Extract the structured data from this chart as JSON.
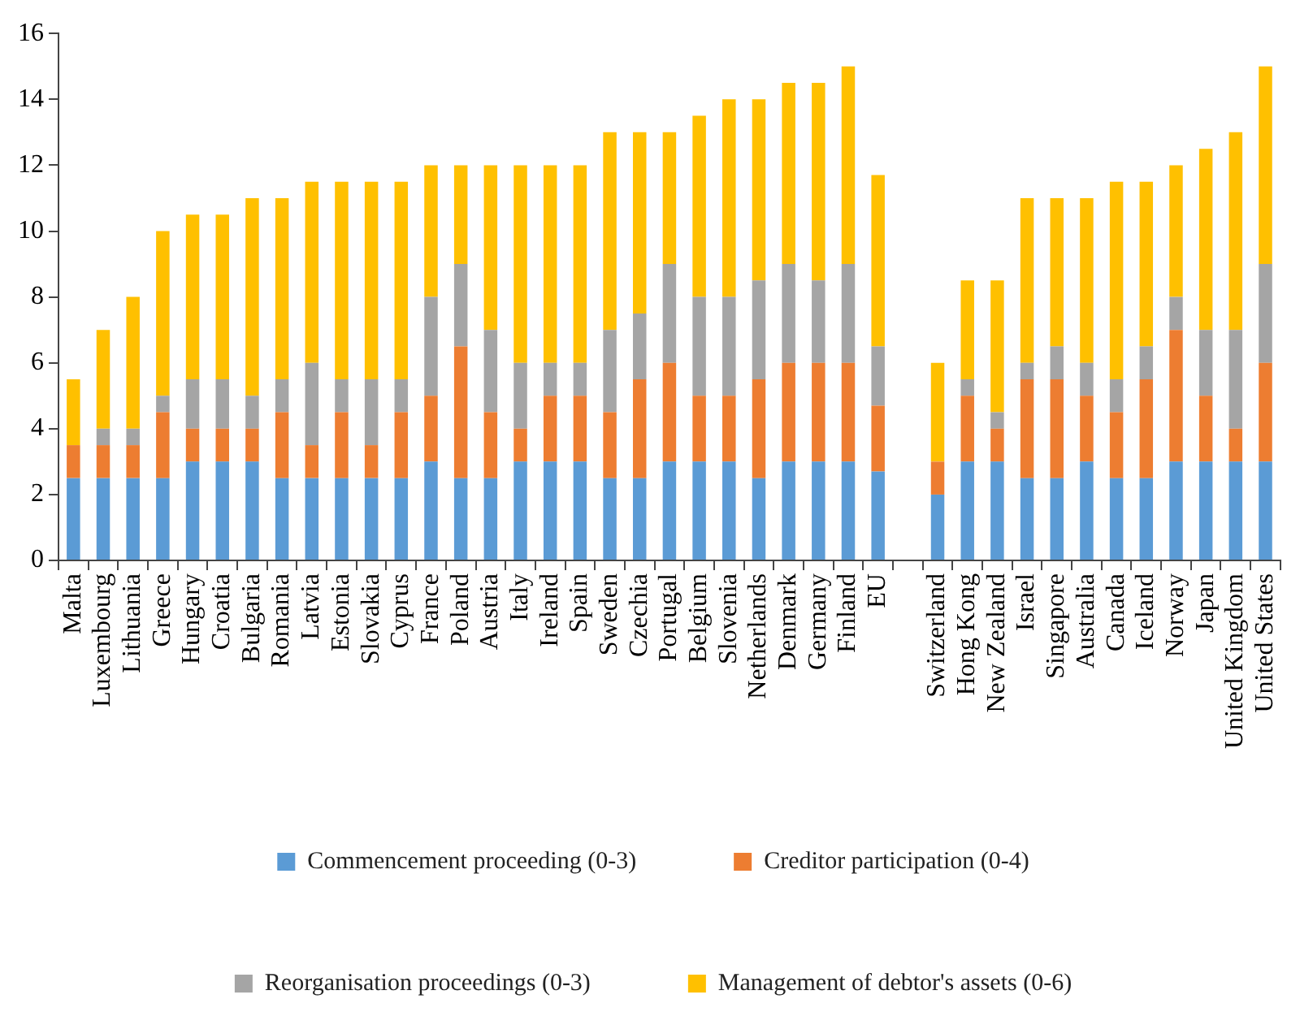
{
  "chart_data": {
    "type": "bar",
    "stacked": true,
    "categories": [
      "Malta",
      "Luxembourg",
      "Lithuania",
      "Greece",
      "Hungary",
      "Croatia",
      "Bulgaria",
      "Romania",
      "Latvia",
      "Estonia",
      "Slovakia",
      "Cyprus",
      "France",
      "Poland",
      "Austria",
      "Italy",
      "Ireland",
      "Spain",
      "Sweden",
      "Czechia",
      "Portugal",
      "Belgium",
      "Slovenia",
      "Netherlands",
      "Denmark",
      "Germany",
      "Finland",
      "EU",
      null,
      "Switzerland",
      "Hong Kong",
      "New Zealand",
      "Israel",
      "Singapore",
      "Australia",
      "Canada",
      "Iceland",
      "Norway",
      "Japan",
      "United Kingdom",
      "United States"
    ],
    "series": [
      {
        "name": "Commencement proceeding (0-3)",
        "color": "#5b9bd5",
        "values": [
          2.5,
          2.5,
          2.5,
          2.5,
          3,
          3,
          3,
          2.5,
          2.5,
          2.5,
          2.5,
          2.5,
          3,
          2.5,
          2.5,
          3,
          3,
          3,
          2.5,
          2.5,
          3,
          3,
          3,
          2.5,
          3,
          3,
          3,
          2.7,
          null,
          2,
          3,
          3,
          2.5,
          2.5,
          3,
          2.5,
          2.5,
          3,
          3,
          3,
          3
        ]
      },
      {
        "name": "Creditor participation (0-4)",
        "color": "#ed7d31",
        "values": [
          1,
          1,
          1,
          2,
          1,
          1,
          1,
          2,
          1,
          2,
          1,
          2,
          2,
          4,
          2,
          1,
          2,
          2,
          2,
          3,
          3,
          2,
          2,
          3,
          3,
          3,
          3,
          2,
          null,
          1,
          2,
          1,
          3,
          3,
          2,
          2,
          3,
          4,
          2,
          1,
          3
        ]
      },
      {
        "name": "Reorganisation proceedings (0-3)",
        "color": "#a5a5a5",
        "values": [
          0,
          0.5,
          0.5,
          0.5,
          1.5,
          1.5,
          1,
          1,
          2.5,
          1,
          2,
          1,
          3,
          2.5,
          2.5,
          2,
          1,
          1,
          2.5,
          2,
          3,
          3,
          3,
          3,
          3,
          2.5,
          3,
          1.8,
          null,
          0,
          0.5,
          0.5,
          0.5,
          1,
          1,
          1,
          1,
          1,
          2,
          3,
          3
        ]
      },
      {
        "name": "Management of debtor's assets (0-6)",
        "color": "#ffc000",
        "values": [
          2,
          3,
          4,
          5,
          5,
          5,
          6,
          5.5,
          5.5,
          6,
          6,
          6,
          4,
          3,
          5,
          6,
          6,
          6,
          6,
          5.5,
          4,
          5.5,
          6,
          5.5,
          5.5,
          6,
          6,
          5.2,
          null,
          3,
          3,
          4,
          5,
          4.5,
          5,
          6,
          5,
          4,
          5.5,
          6,
          6
        ]
      }
    ],
    "ylim": [
      0,
      16
    ],
    "yticks": [
      0,
      2,
      4,
      6,
      8,
      10,
      12,
      14,
      16
    ],
    "grid": false,
    "legend": "bottom"
  }
}
